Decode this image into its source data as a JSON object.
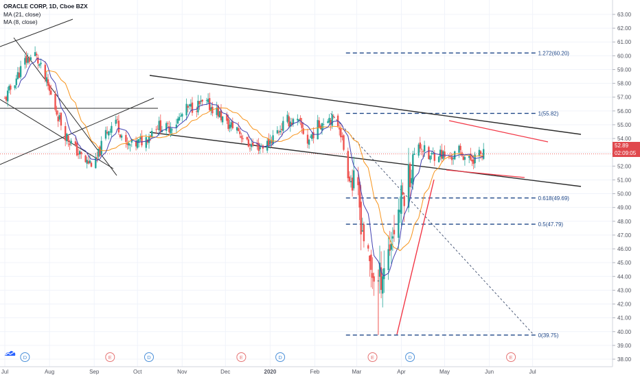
{
  "legend": {
    "symbol": "ORACLE CORP, 1D, Cboe BZX",
    "ma1": "MA (21, close)",
    "ma2": "MA (8, close)"
  },
  "current_price": "52.89",
  "countdown": "02:09:05",
  "colors": {
    "up": "#26a69a",
    "down": "#ef5350",
    "ma21": "#f7931a",
    "ma8": "#3f3fb0",
    "fib": "#1c4587",
    "trend": "#2b2b2b",
    "pennant": "#f23645",
    "price_line": "#ef5350"
  },
  "chart_data": {
    "type": "candlestick",
    "title": "ORACLE CORP, 1D, Cboe BZX",
    "series": [
      {
        "name": "MA (21, close)"
      },
      {
        "name": "MA (8, close)"
      }
    ],
    "x_axis": {
      "ticks": [
        {
          "label": "Jul",
          "date": "2019-07-01"
        },
        {
          "label": "Aug",
          "date": "2019-08-01"
        },
        {
          "label": "Sep",
          "date": "2019-09-01"
        },
        {
          "label": "Oct",
          "date": "2019-10-01"
        },
        {
          "label": "Nov",
          "date": "2019-11-01"
        },
        {
          "label": "Dec",
          "date": "2019-12-01"
        },
        {
          "label": "2020",
          "date": "2020-01-01"
        },
        {
          "label": "Feb",
          "date": "2020-02-01"
        },
        {
          "label": "Mar",
          "date": "2020-03-01"
        },
        {
          "label": "Apr",
          "date": "2020-04-01"
        },
        {
          "label": "May",
          "date": "2020-05-01"
        },
        {
          "label": "Jun",
          "date": "2020-06-01"
        },
        {
          "label": "Jul",
          "date": "2020-07-01"
        }
      ]
    },
    "y_axis": {
      "range": [
        37.5,
        63.3
      ],
      "ticks": [
        "38.00",
        "39.00",
        "40.00",
        "41.00",
        "42.00",
        "43.00",
        "44.00",
        "45.00",
        "46.00",
        "47.00",
        "48.00",
        "49.00",
        "50.00",
        "51.00",
        "52.00",
        "53.00",
        "54.00",
        "55.00",
        "56.00",
        "57.00",
        "58.00",
        "59.00",
        "60.00",
        "61.00",
        "62.00",
        "63.00"
      ]
    },
    "candles_close": [
      {
        "date": "2019-07-01",
        "close": 56.8
      },
      {
        "date": "2019-07-08",
        "close": 58.2
      },
      {
        "date": "2019-07-15",
        "close": 59.6
      },
      {
        "date": "2019-07-22",
        "close": 60.1
      },
      {
        "date": "2019-07-29",
        "close": 58.3
      },
      {
        "date": "2019-08-05",
        "close": 56.2
      },
      {
        "date": "2019-08-12",
        "close": 54.3
      },
      {
        "date": "2019-08-19",
        "close": 53.2
      },
      {
        "date": "2019-08-26",
        "close": 52.3
      },
      {
        "date": "2019-09-02",
        "close": 52.2
      },
      {
        "date": "2019-09-09",
        "close": 54.4
      },
      {
        "date": "2019-09-16",
        "close": 55.4
      },
      {
        "date": "2019-09-23",
        "close": 53.4
      },
      {
        "date": "2019-09-30",
        "close": 53.6
      },
      {
        "date": "2019-10-07",
        "close": 54.0
      },
      {
        "date": "2019-10-14",
        "close": 55.0
      },
      {
        "date": "2019-10-21",
        "close": 54.7
      },
      {
        "date": "2019-10-28",
        "close": 55.2
      },
      {
        "date": "2019-11-04",
        "close": 56.1
      },
      {
        "date": "2019-11-11",
        "close": 56.4
      },
      {
        "date": "2019-11-18",
        "close": 56.5
      },
      {
        "date": "2019-11-25",
        "close": 56.0
      },
      {
        "date": "2019-12-02",
        "close": 55.0
      },
      {
        "date": "2019-12-09",
        "close": 54.8
      },
      {
        "date": "2019-12-16",
        "close": 53.6
      },
      {
        "date": "2019-12-23",
        "close": 53.4
      },
      {
        "date": "2019-12-30",
        "close": 53.6
      },
      {
        "date": "2020-01-06",
        "close": 54.5
      },
      {
        "date": "2020-01-13",
        "close": 55.3
      },
      {
        "date": "2020-01-21",
        "close": 55.1
      },
      {
        "date": "2020-01-27",
        "close": 53.8
      },
      {
        "date": "2020-02-03",
        "close": 54.9
      },
      {
        "date": "2020-02-10",
        "close": 55.6
      },
      {
        "date": "2020-02-18",
        "close": 55.0
      },
      {
        "date": "2020-02-24",
        "close": 51.5
      },
      {
        "date": "2020-03-02",
        "close": 49.6
      },
      {
        "date": "2020-03-09",
        "close": 44.9
      },
      {
        "date": "2020-03-16",
        "close": 43.5
      },
      {
        "date": "2020-03-23",
        "close": 45.9
      },
      {
        "date": "2020-03-30",
        "close": 48.8
      },
      {
        "date": "2020-04-06",
        "close": 51.3
      },
      {
        "date": "2020-04-13",
        "close": 53.7
      },
      {
        "date": "2020-04-20",
        "close": 52.6
      },
      {
        "date": "2020-04-27",
        "close": 53.0
      },
      {
        "date": "2020-05-04",
        "close": 52.5
      },
      {
        "date": "2020-05-11",
        "close": 53.1
      },
      {
        "date": "2020-05-18",
        "close": 52.4
      },
      {
        "date": "2020-05-26",
        "close": 52.89
      }
    ],
    "fib_levels": [
      {
        "label": "1.272(60.20)",
        "value": 60.2
      },
      {
        "label": "1(55.82)",
        "value": 55.82
      },
      {
        "label": "0.618(49.69)",
        "value": 49.69
      },
      {
        "label": "0.5(47.79)",
        "value": 47.79
      },
      {
        "label": "0(39.75)",
        "value": 39.75
      }
    ],
    "event_markers": [
      {
        "date": "2019-07-15",
        "letter": "D"
      },
      {
        "date": "2019-09-12",
        "letter": "E"
      },
      {
        "date": "2019-10-09",
        "letter": "D"
      },
      {
        "date": "2019-12-12",
        "letter": "E"
      },
      {
        "date": "2020-01-08",
        "letter": "D"
      },
      {
        "date": "2020-03-12",
        "letter": "E"
      },
      {
        "date": "2020-04-07",
        "letter": "D"
      },
      {
        "date": "2020-06-16",
        "letter": "E"
      }
    ],
    "grid": true
  }
}
